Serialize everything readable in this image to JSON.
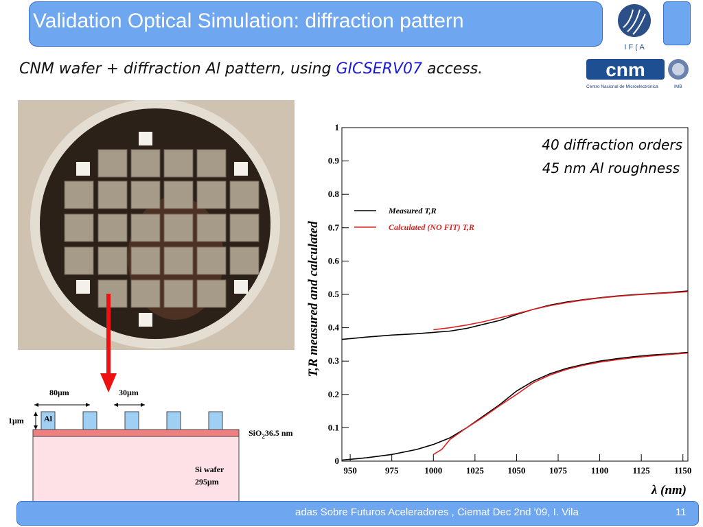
{
  "slide": {
    "title": "Validation Optical Simulation: diffraction pattern",
    "subtitle_prefix": "CNM wafer + diffraction Al pattern, using ",
    "subtitle_highlight": "GICSERV07",
    "subtitle_suffix": " access.",
    "ifca_logo_text": "I F ( A",
    "cnm_logo_text": "cnm",
    "cnm_logo_caption": "Centro Nacional de Microelectrónica",
    "cnm_logo_small": "IMB",
    "footer_text": "adas Sobre Futuros Aceleradores , Ciemat Dec 2nd '09,   I. Vila",
    "page_number": "11"
  },
  "cross_section": {
    "label_80": "80μm",
    "label_30": "30μm",
    "label_1um": "1μm",
    "label_al": "Al",
    "label_sio2_main": "SiO",
    "label_sio2_sub": "2",
    "label_sio2_rest": "36.5 nm",
    "label_si_wafer": "Si wafer",
    "label_295": "295μm",
    "colors": {
      "al": "#9fd0f3",
      "sio2": "#f08080",
      "si": "#fde1e6",
      "arrow": "#ee1111"
    }
  },
  "chart_data": {
    "type": "line",
    "title": "",
    "xlabel": "λ (nm)",
    "ylabel": "T,R measured and calculated",
    "xlim": [
      945,
      1153
    ],
    "ylim": [
      0,
      1
    ],
    "x_ticks": [
      950,
      975,
      1000,
      1025,
      1050,
      1075,
      1100,
      1125,
      1150
    ],
    "y_ticks": [
      0,
      0.1,
      0.2,
      0.3,
      0.4,
      0.5,
      0.6,
      0.7,
      0.8,
      0.9,
      1
    ],
    "y_tick_labels": [
      "0",
      "0.1",
      "0.2",
      "0.3",
      "0.4",
      "0.5",
      "0.6",
      "0.7",
      "0.8",
      "0.9",
      "1"
    ],
    "annotation_lines": [
      "40 diffraction orders",
      "45 nm Al roughness"
    ],
    "legend_position": "upper-left",
    "series": [
      {
        "name": "Measured T,R",
        "color": "#000000",
        "group": "upper",
        "x": [
          945,
          960,
          975,
          990,
          1000,
          1010,
          1020,
          1030,
          1040,
          1050,
          1060,
          1070,
          1080,
          1090,
          1100,
          1110,
          1120,
          1130,
          1140,
          1153
        ],
        "y": [
          0.365,
          0.372,
          0.378,
          0.382,
          0.386,
          0.39,
          0.398,
          0.41,
          0.422,
          0.44,
          0.455,
          0.468,
          0.477,
          0.484,
          0.49,
          0.495,
          0.499,
          0.502,
          0.505,
          0.51
        ]
      },
      {
        "name": "Calculated (NO FIT) T,R",
        "color": "#e02020",
        "group": "upper",
        "x": [
          1000,
          1010,
          1020,
          1030,
          1040,
          1050,
          1060,
          1070,
          1080,
          1090,
          1100,
          1110,
          1120,
          1130,
          1140,
          1153
        ],
        "y": [
          0.394,
          0.4,
          0.408,
          0.418,
          0.43,
          0.442,
          0.455,
          0.466,
          0.475,
          0.483,
          0.489,
          0.494,
          0.498,
          0.501,
          0.504,
          0.508
        ]
      },
      {
        "name": "Measured T,R",
        "color": "#000000",
        "group": "lower",
        "x": [
          945,
          960,
          975,
          990,
          1000,
          1010,
          1020,
          1030,
          1040,
          1050,
          1060,
          1070,
          1080,
          1090,
          1100,
          1110,
          1120,
          1130,
          1140,
          1153
        ],
        "y": [
          0.003,
          0.01,
          0.02,
          0.035,
          0.05,
          0.07,
          0.1,
          0.135,
          0.17,
          0.21,
          0.24,
          0.262,
          0.278,
          0.29,
          0.3,
          0.307,
          0.313,
          0.318,
          0.321,
          0.326
        ]
      },
      {
        "name": "Calculated (NO FIT) T,R",
        "color": "#e02020",
        "group": "lower",
        "x": [
          1000,
          1005,
          1010,
          1020,
          1030,
          1040,
          1050,
          1060,
          1070,
          1080,
          1090,
          1100,
          1110,
          1120,
          1130,
          1140,
          1153
        ],
        "y": [
          0.02,
          0.035,
          0.065,
          0.1,
          0.132,
          0.167,
          0.2,
          0.235,
          0.258,
          0.275,
          0.287,
          0.297,
          0.304,
          0.31,
          0.315,
          0.319,
          0.324
        ]
      }
    ]
  }
}
